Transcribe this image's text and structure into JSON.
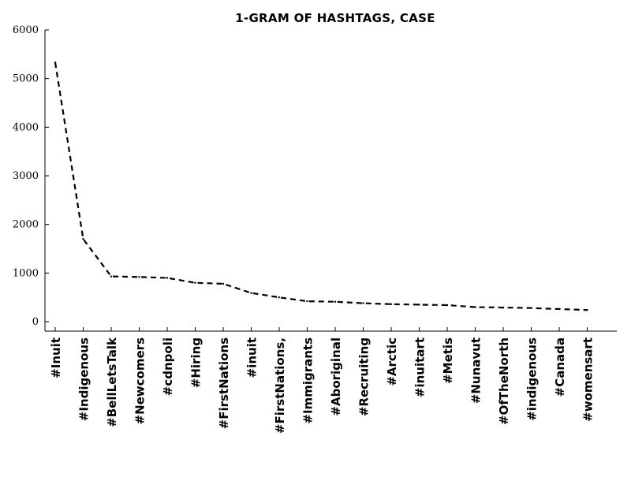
{
  "chart_data": {
    "type": "line",
    "title": "1-gram of hashtags, case",
    "xlabel": "",
    "ylabel": "",
    "ylim": [
      0,
      6000
    ],
    "yticks": [
      0,
      1000,
      2000,
      3000,
      4000,
      5000,
      6000
    ],
    "grid": false,
    "line_style": "dashed",
    "line_color": "#000000",
    "categories": [
      "#Inuit",
      "#Indigenous",
      "#BellLetsTalk",
      "#Newcomers",
      "#cdnpoli",
      "#Hiring",
      "#FirstNations",
      "#inuit",
      "#FirstNations,",
      "#Immigrants",
      "#Aboriginal",
      "#Recruiting",
      "#Arctic",
      "#inuitart",
      "#Metis",
      "#Nunavut",
      "#OfTheNorth",
      "#indigenous",
      "#Canada",
      "#womensart"
    ],
    "values": [
      5330,
      1700,
      930,
      920,
      900,
      800,
      780,
      590,
      500,
      420,
      410,
      380,
      360,
      350,
      340,
      300,
      290,
      280,
      260,
      240
    ]
  }
}
